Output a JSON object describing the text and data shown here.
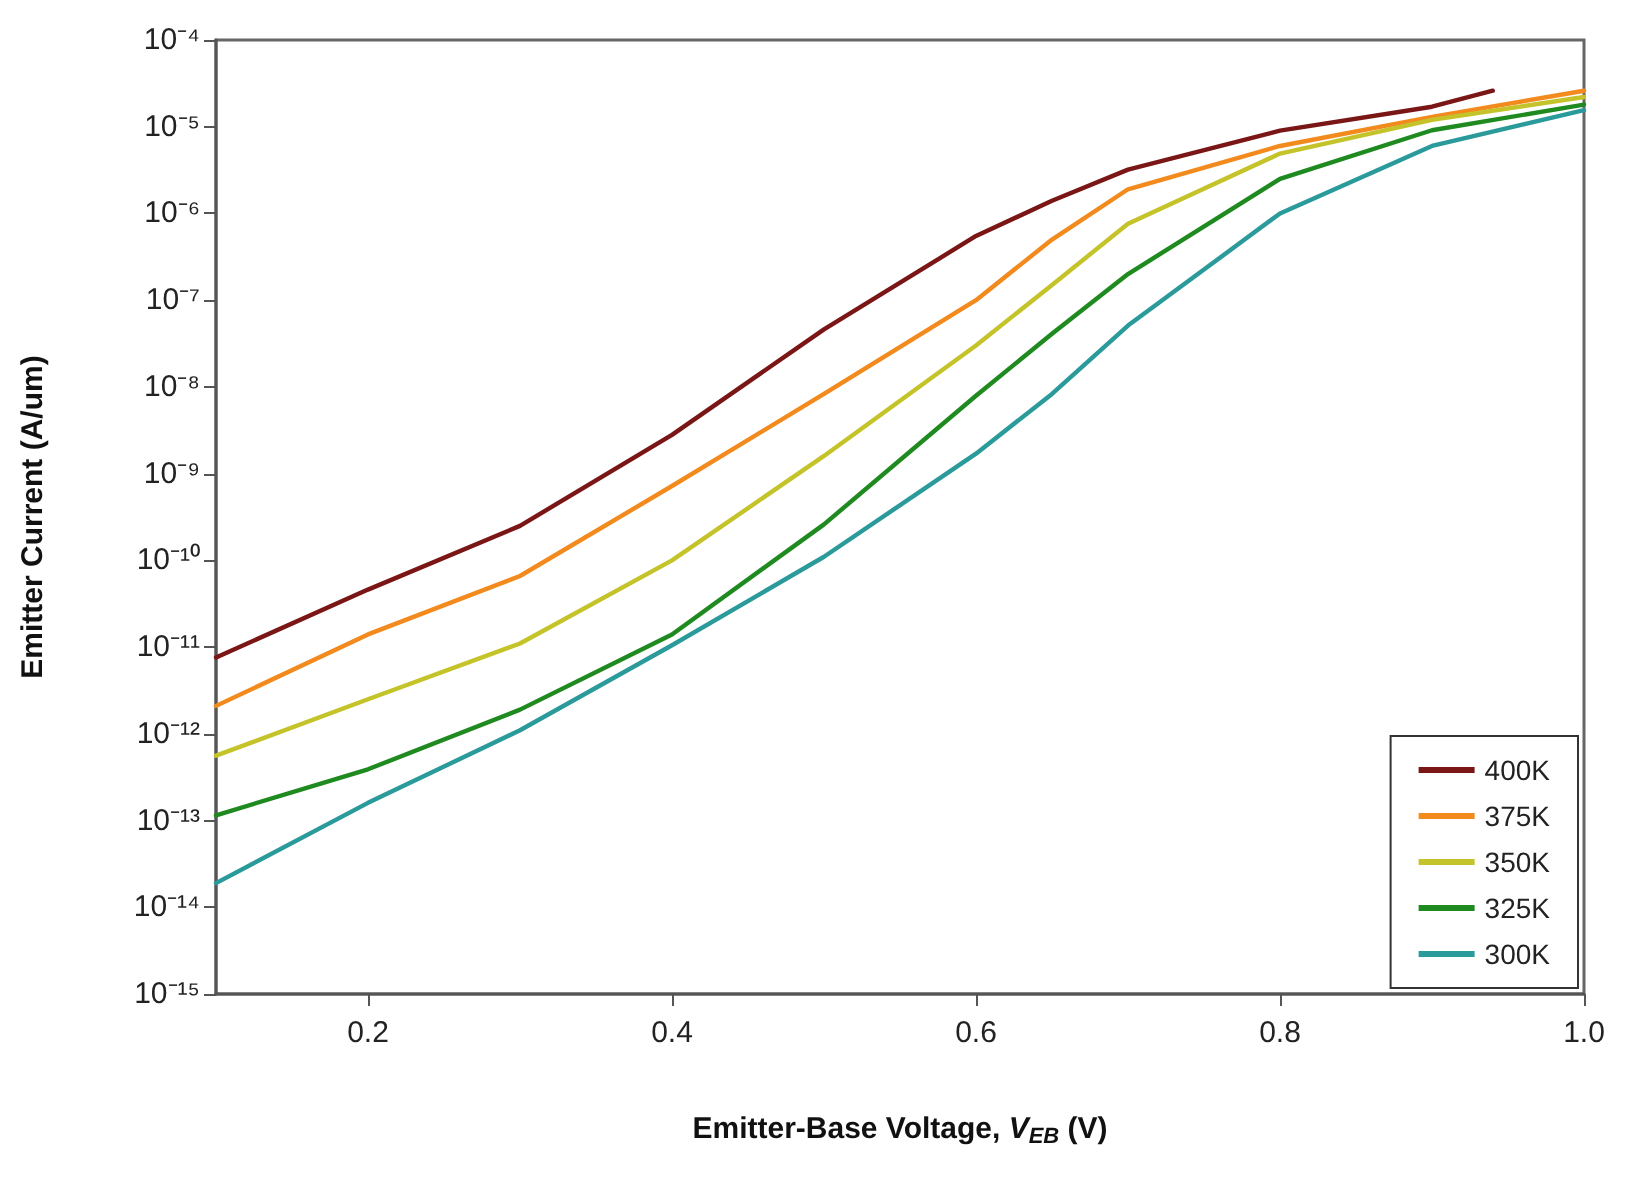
{
  "chart_data": {
    "type": "line",
    "xlabel": "Emitter-Base Voltage, V$_{EB}$ (V)",
    "ylabel": "Emitter Current (A/um)",
    "log": "y",
    "grid": false,
    "legend": "bottom right",
    "marker": "none",
    "line_style": "solid",
    "xlim": [
      0.1,
      1.0
    ],
    "xticks": [
      0.2,
      0.4,
      0.6,
      0.8,
      {
        "value": 1,
        "label": "1.0"
      }
    ],
    "ylim": [
      1e-15,
      0.0001
    ],
    "yticks": [
      {
        "value": 1e-15,
        "label": "10⁻¹⁵"
      },
      {
        "value": 1e-14,
        "label": "10⁻¹⁴"
      },
      {
        "value": 1e-13,
        "label": "10⁻¹³"
      },
      {
        "value": 1e-12,
        "label": "10⁻¹²"
      },
      {
        "value": 1e-11,
        "label": "10⁻¹¹"
      },
      {
        "value": 1e-10,
        "label": "10⁻¹⁰"
      },
      {
        "value": 1e-09,
        "label": "10⁻⁹"
      },
      {
        "value": 1e-08,
        "label": "10⁻⁸"
      },
      {
        "value": 1e-07,
        "label": "10⁻⁷"
      },
      {
        "value": 1e-06,
        "label": "10⁻⁶"
      },
      {
        "value": 1e-05,
        "label": "10⁻⁵"
      },
      {
        "value": 0.0001,
        "label": "10⁻⁴"
      }
    ],
    "series": [
      {
        "name": "400K",
        "color": "#7b1616",
        "x": [
          0.1,
          0.2,
          0.3,
          0.4,
          0.5,
          0.6,
          0.65,
          0.7,
          0.8,
          0.9,
          0.94
        ],
        "values": [
          7.6e-12,
          4.6e-11,
          2.5e-10,
          2.8e-09,
          4.6e-08,
          5.5e-07,
          1.4e-06,
          3.2e-06,
          9e-06,
          1.7e-05,
          2.6e-05
        ]
      },
      {
        "name": "375K",
        "color": "#f28a1e",
        "x": [
          0.1,
          0.2,
          0.3,
          0.4,
          0.5,
          0.6,
          0.65,
          0.7,
          0.8,
          0.9,
          1.0
        ],
        "values": [
          2.1e-12,
          1.4e-11,
          6.6e-11,
          7.2e-10,
          8.3e-09,
          1e-07,
          5e-07,
          1.9e-06,
          6e-06,
          1.3e-05,
          2.6e-05
        ]
      },
      {
        "name": "350K",
        "color": "#c4c42a",
        "x": [
          0.1,
          0.2,
          0.3,
          0.4,
          0.5,
          0.6,
          0.65,
          0.7,
          0.8,
          0.9,
          1.0
        ],
        "values": [
          5.6e-13,
          2.5e-12,
          1.1e-11,
          1e-10,
          1.6e-09,
          3e-08,
          1.5e-07,
          7.6e-07,
          4.9e-06,
          1.2e-05,
          2.2e-05
        ]
      },
      {
        "name": "325K",
        "color": "#1f8a1f",
        "x": [
          0.1,
          0.2,
          0.3,
          0.4,
          0.5,
          0.6,
          0.65,
          0.7,
          0.8,
          0.9,
          1.0
        ],
        "values": [
          1.15e-13,
          3.9e-13,
          1.9e-12,
          1.4e-11,
          2.6e-10,
          7.9e-09,
          4.1e-08,
          2e-07,
          2.5e-06,
          9.1e-06,
          1.8e-05
        ]
      },
      {
        "name": "300K",
        "color": "#2a9a9a",
        "x": [
          0.1,
          0.2,
          0.3,
          0.4,
          0.5,
          0.6,
          0.65,
          0.7,
          0.8,
          0.9,
          1.0
        ],
        "values": [
          1.9e-14,
          1.6e-13,
          1.1e-12,
          1.05e-11,
          1.1e-10,
          1.7e-09,
          8.3e-09,
          5.1e-08,
          1e-06,
          6e-06,
          1.55e-05
        ]
      }
    ]
  }
}
